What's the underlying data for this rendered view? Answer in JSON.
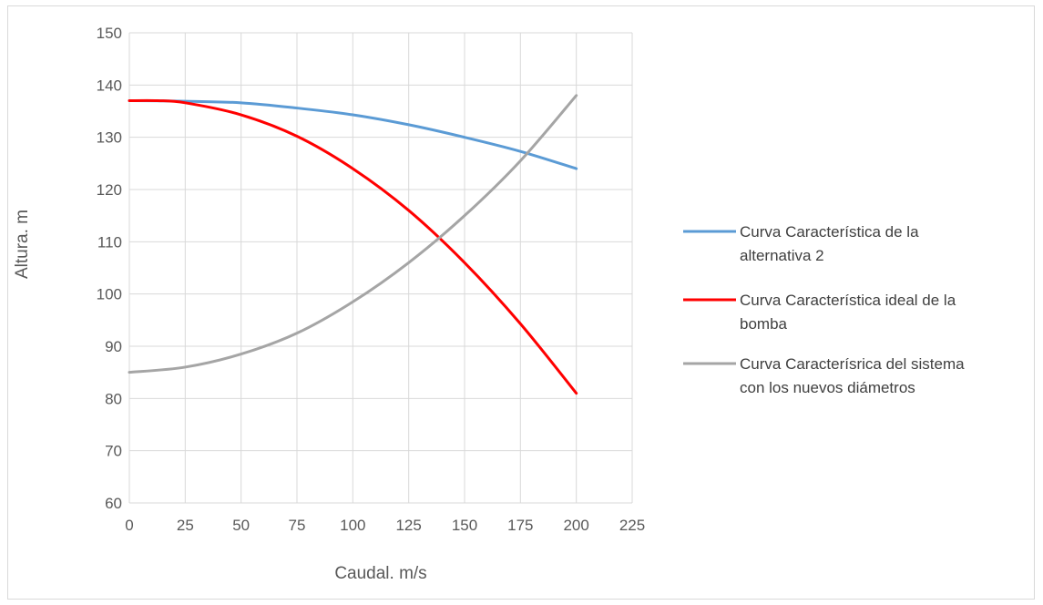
{
  "chart_data": {
    "type": "line",
    "title": "",
    "xlabel": "Caudal. m/s",
    "ylabel": "Altura. m",
    "xlim": [
      0,
      225
    ],
    "ylim": [
      60,
      150
    ],
    "xticks": [
      0,
      25,
      50,
      75,
      100,
      125,
      150,
      175,
      200,
      225
    ],
    "yticks": [
      60,
      70,
      80,
      90,
      100,
      110,
      120,
      130,
      140,
      150
    ],
    "grid": true,
    "legend_position": "right",
    "series": [
      {
        "name": "Curva Característica de la alternativa 2",
        "legend_lines": [
          "Curva Característica de la",
          "alternativa 2"
        ],
        "color": "#5b9bd5",
        "x": [
          0,
          25,
          50,
          75,
          100,
          125,
          150,
          175,
          200
        ],
        "y": [
          137.0,
          136.9,
          136.6,
          135.6,
          134.3,
          132.4,
          130.0,
          127.3,
          124.0
        ]
      },
      {
        "name": "Curva Característica ideal de la bomba",
        "legend_lines": [
          "Curva Característica ideal de la",
          "bomba"
        ],
        "color": "#ff0000",
        "x": [
          0,
          12.5,
          25,
          50,
          75,
          100,
          125,
          150,
          175,
          200
        ],
        "y": [
          137.0,
          137.0,
          136.6,
          134.3,
          130.2,
          124.0,
          116.0,
          106.0,
          94.3,
          81.0
        ]
      },
      {
        "name": "Curva Característrica del sistema con los nuevos diámetros",
        "legend_lines": [
          "Curva Caracterísrica del sistema",
          "con los nuevos diámetros"
        ],
        "color": "#a5a5a5",
        "x": [
          0,
          25,
          50,
          75,
          100,
          125,
          150,
          175,
          200
        ],
        "y": [
          85.0,
          86.0,
          88.5,
          92.5,
          98.5,
          106.0,
          115.0,
          125.5,
          138.0
        ]
      }
    ]
  }
}
